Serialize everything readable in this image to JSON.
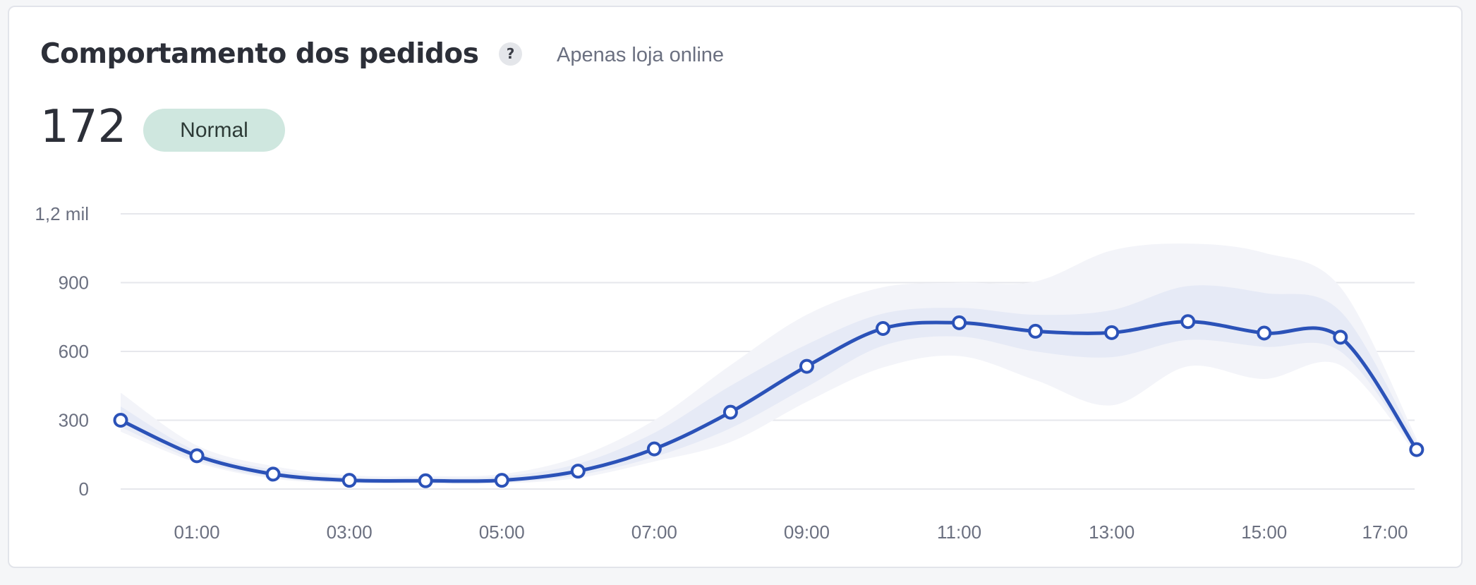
{
  "header": {
    "title": "Comportamento dos pedidos",
    "help_label": "?",
    "subtitle": "Apenas loja online",
    "total": "172",
    "status": "Normal"
  },
  "colors": {
    "line": "#2b52b8",
    "band_inner": "#e6eaf6",
    "band_outer": "#f3f4f9",
    "grid": "#e6e7ec",
    "badge_bg": "#cfe7df"
  },
  "chart_data": {
    "type": "line",
    "title": "",
    "xlabel": "",
    "ylabel": "",
    "ylim": [
      0,
      1200
    ],
    "grid": true,
    "y_ticks": [
      {
        "value": 0,
        "label": "0"
      },
      {
        "value": 300,
        "label": "300"
      },
      {
        "value": 600,
        "label": "600"
      },
      {
        "value": 900,
        "label": "900"
      },
      {
        "value": 1200,
        "label": "1,2 mil"
      }
    ],
    "x_ticks": [
      {
        "value": 1,
        "label": "01:00"
      },
      {
        "value": 3,
        "label": "03:00"
      },
      {
        "value": 5,
        "label": "05:00"
      },
      {
        "value": 7,
        "label": "07:00"
      },
      {
        "value": 9,
        "label": "09:00"
      },
      {
        "value": 11,
        "label": "11:00"
      },
      {
        "value": 13,
        "label": "13:00"
      },
      {
        "value": 15,
        "label": "15:00"
      },
      {
        "value": 17,
        "label": "17:00"
      }
    ],
    "x": [
      0,
      1,
      2,
      3,
      4,
      5,
      6,
      7,
      8,
      9,
      10,
      11,
      12,
      13,
      14,
      15,
      16,
      17
    ],
    "series": [
      {
        "values": [
          300,
          145,
          65,
          38,
          36,
          38,
          78,
          175,
          335,
          535,
          700,
          725,
          688,
          682,
          730,
          680,
          662,
          172
        ]
      }
    ],
    "band_inner": {
      "upper": [
        360,
        165,
        85,
        50,
        48,
        55,
        110,
        245,
        450,
        630,
        765,
        790,
        760,
        780,
        885,
        855,
        775,
        200
      ],
      "lower": [
        270,
        125,
        50,
        28,
        26,
        28,
        60,
        140,
        265,
        445,
        625,
        665,
        600,
        575,
        650,
        620,
        600,
        160
      ]
    },
    "band_outer": {
      "upper": [
        420,
        190,
        100,
        60,
        56,
        65,
        140,
        300,
        540,
        760,
        880,
        900,
        905,
        1040,
        1070,
        1030,
        880,
        220
      ],
      "lower": [
        250,
        115,
        45,
        25,
        22,
        24,
        48,
        120,
        205,
        380,
        530,
        580,
        475,
        365,
        535,
        480,
        540,
        150
      ]
    }
  }
}
